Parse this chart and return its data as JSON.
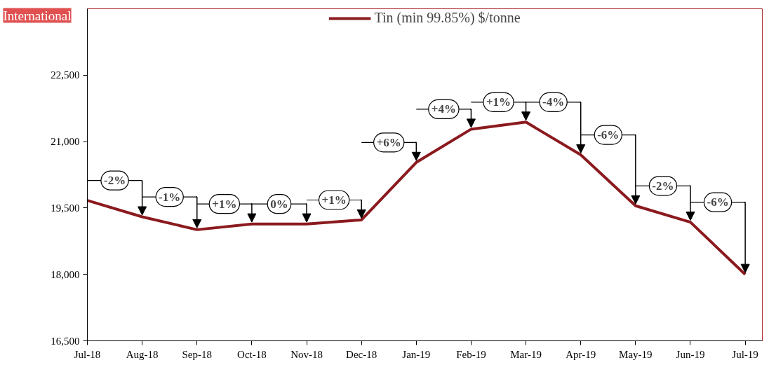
{
  "chart_data": {
    "type": "line",
    "title": "International",
    "categories": [
      "Jul-18",
      "Aug-18",
      "Sep-18",
      "Oct-18",
      "Nov-18",
      "Dec-18",
      "Jan-19",
      "Feb-19",
      "Mar-19",
      "Apr-19",
      "May-19",
      "Jun-19",
      "Jul-19"
    ],
    "series": [
      {
        "name": "Tin (min 99.85%) $/tonne",
        "color": "#8b1a1f",
        "values": [
          19670,
          19300,
          19010,
          19140,
          19140,
          19230,
          20530,
          21280,
          21440,
          20700,
          19550,
          19180,
          18000
        ]
      }
    ],
    "ylim": [
      16500,
      24000
    ],
    "yticks": [
      {
        "value": 16500,
        "label": "16,500"
      },
      {
        "value": 18000,
        "label": "18,000"
      },
      {
        "value": 19500,
        "label": "19,500"
      },
      {
        "value": 21000,
        "label": "21,000"
      },
      {
        "value": 22500,
        "label": "22,500"
      }
    ],
    "annotations": [
      {
        "text": "-2%",
        "x": "Aug-18",
        "y": 19300
      },
      {
        "text": "-1%",
        "x": "Sep-18",
        "y": 19010
      },
      {
        "text": "+1%",
        "x": "Oct-18",
        "y": 19140
      },
      {
        "text": "0%",
        "x": "Nov-18",
        "y": 19140
      },
      {
        "text": "+1%",
        "x": "Dec-18",
        "y": 19230
      },
      {
        "text": "+6%",
        "x": "Jan-19",
        "y": 20530
      },
      {
        "text": "+4%",
        "x": "Feb-19",
        "y": 21280
      },
      {
        "text": "+1%",
        "x": "Mar-19",
        "y": 21440
      },
      "-4%",
      "-6%",
      {
        "text": "-2%",
        "x": "Jun-19",
        "y": 19180
      },
      "-6%"
    ],
    "legend": "top",
    "grid": false,
    "marker": "none",
    "line_style": "solid"
  }
}
